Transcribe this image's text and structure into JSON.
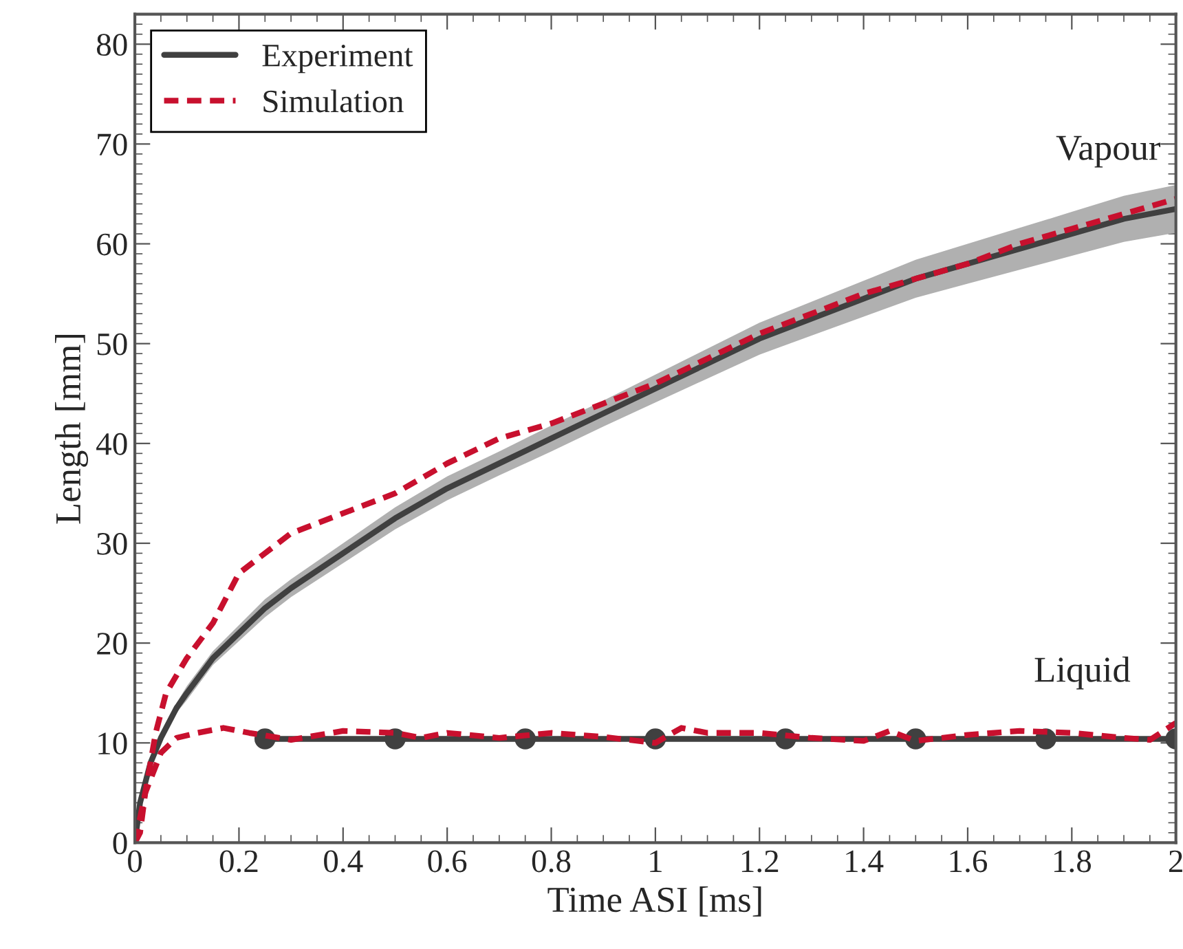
{
  "chart_data": {
    "type": "line",
    "xlabel": "Time ASI [ms]",
    "ylabel": "Length [mm]",
    "xlim": [
      0,
      2
    ],
    "ylim": [
      0,
      83
    ],
    "xticks": [
      0,
      0.2,
      0.4,
      0.6,
      0.8,
      1,
      1.2,
      1.4,
      1.6,
      1.8,
      2
    ],
    "yticks": [
      0,
      10,
      20,
      30,
      40,
      50,
      60,
      70,
      80
    ],
    "grid": false,
    "legend": "top left",
    "series": [
      {
        "name": "Experiment",
        "color": "#404040",
        "line_style": "solid",
        "marker": "none",
        "x": [
          0,
          0.01,
          0.03,
          0.05,
          0.08,
          0.1,
          0.15,
          0.2,
          0.25,
          0.3,
          0.4,
          0.5,
          0.6,
          0.7,
          0.8,
          0.9,
          1.0,
          1.1,
          1.2,
          1.3,
          1.4,
          1.5,
          1.6,
          1.7,
          1.8,
          1.9,
          2.0
        ],
        "values": [
          0,
          4,
          8,
          10.5,
          13.5,
          15,
          18.5,
          21,
          23.5,
          25.5,
          29,
          32.5,
          35.5,
          38,
          40.5,
          43,
          45.5,
          48,
          50.5,
          52.5,
          54.5,
          56.5,
          58,
          59.5,
          61,
          62.5,
          63.5
        ],
        "lower": [
          0,
          3.5,
          7.5,
          10,
          13,
          14.3,
          17.8,
          20.2,
          22.6,
          24.6,
          28,
          31.4,
          34.3,
          36.8,
          39.2,
          41.7,
          44.1,
          46.5,
          48.9,
          50.8,
          52.7,
          54.6,
          56,
          57.4,
          58.8,
          60.2,
          61.1
        ],
        "upper": [
          0,
          4.5,
          8.5,
          11,
          14,
          15.7,
          19.2,
          21.8,
          24.4,
          26.4,
          30,
          33.6,
          36.7,
          39.2,
          41.8,
          44.3,
          46.9,
          49.5,
          52.1,
          54.2,
          56.3,
          58.4,
          60,
          61.6,
          63.2,
          64.8,
          65.9
        ]
      },
      {
        "color": "#c8102e",
        "line_style": "dashed",
        "marker": "none",
        "x": [
          0,
          0.01,
          0.02,
          0.04,
          0.06,
          0.1,
          0.15,
          0.2,
          0.25,
          0.3,
          0.4,
          0.5,
          0.6,
          0.7,
          0.8,
          0.9,
          1.0,
          1.1,
          1.2,
          1.3,
          1.4,
          1.5,
          1.6,
          1.7,
          1.8,
          1.9,
          2.0
        ],
        "values": [
          0,
          1,
          5,
          11,
          15,
          18.5,
          22,
          27,
          29,
          31,
          33,
          35,
          38,
          40.5,
          42,
          44,
          46,
          48.5,
          51,
          53,
          55,
          56.5,
          58,
          60,
          61.5,
          63,
          64.5
        ]
      },
      {
        "color": "#404040",
        "line_style": "solid",
        "marker": "circle",
        "x": [
          0.25,
          0.5,
          0.75,
          1.0,
          1.25,
          1.5,
          1.75,
          2.0
        ],
        "values": [
          10.4,
          10.4,
          10.4,
          10.4,
          10.4,
          10.4,
          10.4,
          10.4
        ]
      },
      {
        "name": "Simulation",
        "color": "#c8102e",
        "line_style": "dashed",
        "marker": "none",
        "x": [
          0,
          0.02,
          0.05,
          0.08,
          0.12,
          0.17,
          0.22,
          0.3,
          0.4,
          0.5,
          0.55,
          0.6,
          0.7,
          0.8,
          0.9,
          1.0,
          1.05,
          1.1,
          1.2,
          1.3,
          1.4,
          1.45,
          1.5,
          1.6,
          1.7,
          1.8,
          1.9,
          1.95,
          2.0
        ],
        "values": [
          0,
          5,
          9,
          10.5,
          11,
          11.5,
          11,
          10.3,
          11.2,
          11,
          10.5,
          11,
          10.5,
          11,
          10.6,
          10,
          11.5,
          11,
          11,
          10.5,
          10.2,
          11.2,
          10.2,
          10.8,
          11.2,
          11,
          10.5,
          10.3,
          12
        ]
      }
    ],
    "annotations": [
      "Vapour",
      "Liquid"
    ]
  }
}
